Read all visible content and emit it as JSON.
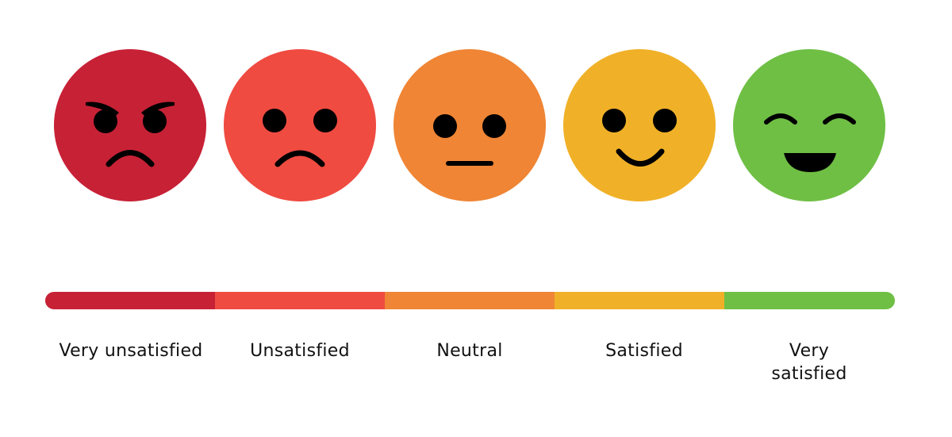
{
  "scale": [
    {
      "label": "Very unsatisfied",
      "face": "angry-face",
      "color": "#C72136"
    },
    {
      "label": "Unsatisfied",
      "face": "sad-face",
      "color": "#EF4B41"
    },
    {
      "label": "Neutral",
      "face": "neutral-face",
      "color": "#EF8535"
    },
    {
      "label": "Satisfied",
      "face": "smiling-face",
      "color": "#F0B128"
    },
    {
      "label": "Very satisfied",
      "face": "grinning-face",
      "color": "#6FBF45"
    }
  ]
}
